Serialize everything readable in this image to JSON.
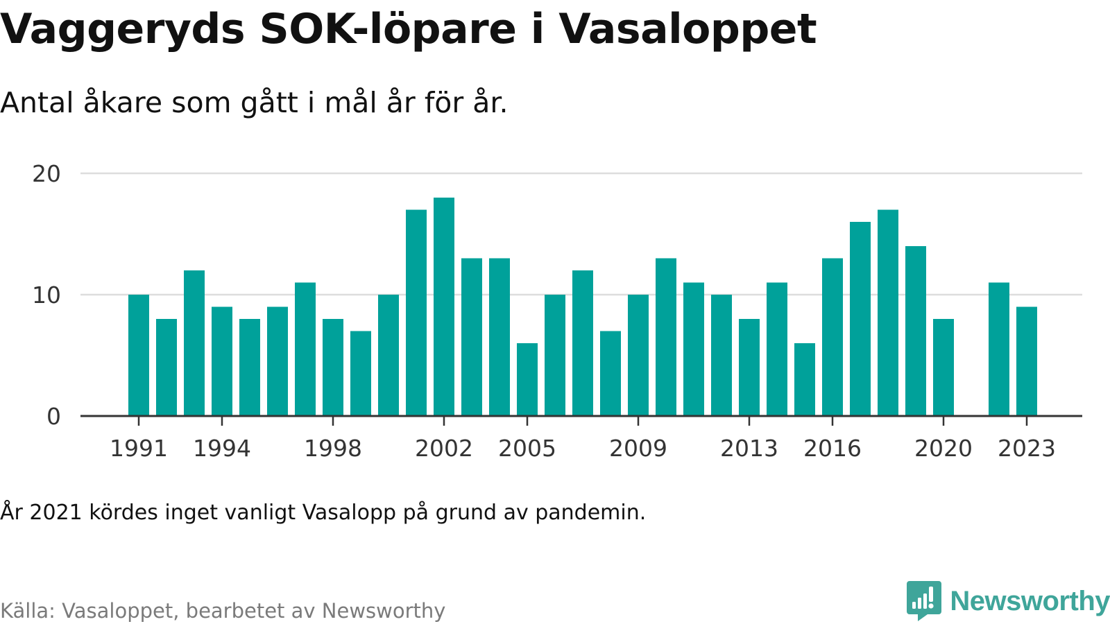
{
  "header": {
    "title": "Vaggeryds SOK-löpare i Vasaloppet",
    "subtitle": "Antal åkare som gått i mål år för år."
  },
  "chart_data": {
    "type": "bar",
    "categories": [
      "1991",
      "1992",
      "1993",
      "1994",
      "1995",
      "1996",
      "1997",
      "1998",
      "1999",
      "2000",
      "2001",
      "2002",
      "2003",
      "2004",
      "2005",
      "2006",
      "2007",
      "2008",
      "2009",
      "2010",
      "2011",
      "2012",
      "2013",
      "2014",
      "2015",
      "2016",
      "2017",
      "2018",
      "2019",
      "2020",
      "2021",
      "2022",
      "2023"
    ],
    "values": [
      10,
      8,
      12,
      9,
      8,
      9,
      11,
      8,
      7,
      10,
      17,
      18,
      13,
      13,
      6,
      10,
      12,
      7,
      10,
      13,
      11,
      10,
      8,
      11,
      6,
      13,
      16,
      17,
      14,
      8,
      null,
      11,
      9
    ],
    "x_tick_labels": [
      "1991",
      "1994",
      "1998",
      "2002",
      "2005",
      "2009",
      "2013",
      "2016",
      "2020",
      "2023"
    ],
    "y_ticks": [
      0,
      10,
      20
    ],
    "ylim": [
      0,
      20
    ],
    "grid": true,
    "bar_color": "#00a19a",
    "title": "Vaggeryds SOK-löpare i Vasaloppet",
    "subtitle": "Antal åkare som gått i mål år för år.",
    "xlabel": "",
    "ylabel": ""
  },
  "footer": {
    "note": "År 2021 kördes inget vanligt Vasalopp på grund av pandemin.",
    "source": "Källa: Vasaloppet, bearbetet av Newsworthy",
    "brand": "Newsworthy",
    "brand_color": "#3fa59a"
  }
}
